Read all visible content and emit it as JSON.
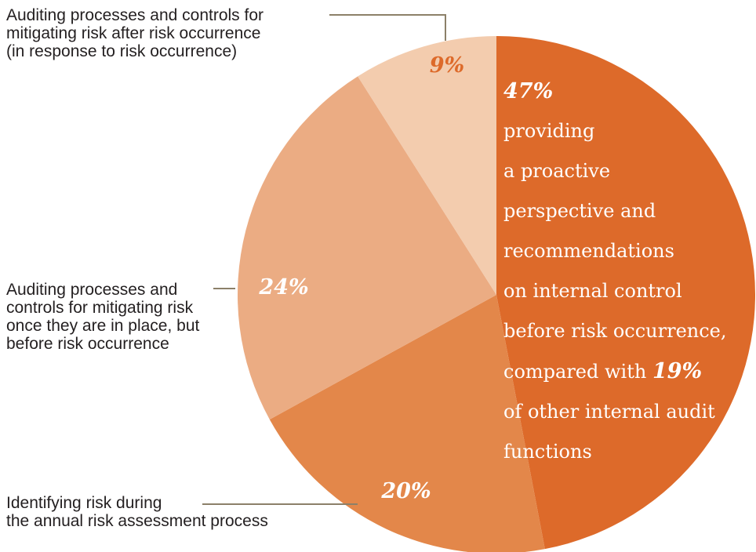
{
  "chart_data": {
    "type": "pie",
    "start_angle_deg": 0,
    "direction": "clockwise",
    "slices": [
      {
        "value": 47,
        "label": "47%",
        "description_lines": [
          "providing",
          "a proactive",
          "perspective and",
          "recommendations",
          "on internal control",
          "before risk occurrence,"
        ],
        "compare_prefix": "compared with ",
        "compare_value": "19%",
        "compare_suffix_lines": [
          "of other internal audit",
          "functions"
        ],
        "color": "#dd6a2a"
      },
      {
        "value": 20,
        "label": "20%",
        "description": "Identifying risk during\nthe annual risk assessment process",
        "color": "#e3874a"
      },
      {
        "value": 24,
        "label": "24%",
        "description": "Auditing processes and\ncontrols for mitigating risk\nonce they are in place, but\nbefore risk occurrence",
        "color": "#ebac83"
      },
      {
        "value": 9,
        "label": "9%",
        "description": "Auditing processes and controls for\nmitigating risk after risk occurrence\n(in response to risk occurrence)",
        "color": "#f3ccae"
      }
    ],
    "leader_color": "#8c8069"
  }
}
